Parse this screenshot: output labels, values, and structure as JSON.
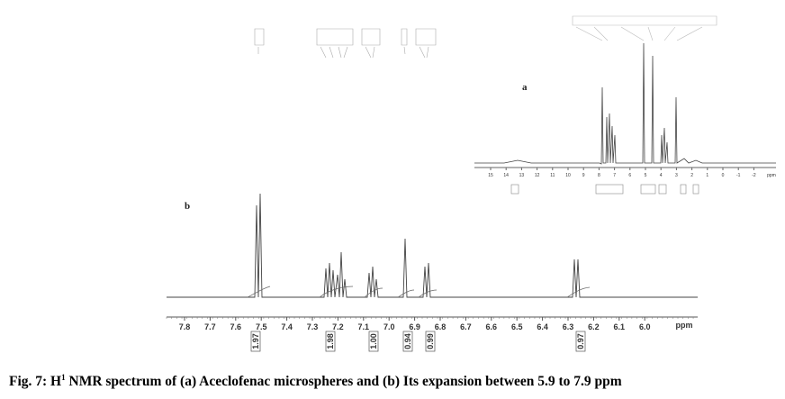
{
  "caption": {
    "label": "Fig. 7: H",
    "superscript": "1",
    "text": " NMR spectrum of (a) Aceclofenac microspheres and (b) Its expansion between 5.9 to 7.9 ppm"
  },
  "panel_a": {
    "label": "a",
    "axis_ticks": [
      "15",
      "14",
      "13",
      "12",
      "11",
      "10",
      "9",
      "8",
      "7",
      "6",
      "5",
      "4",
      "3",
      "2",
      "1",
      "0",
      "-1",
      "-2"
    ],
    "axis_unit": "ppm"
  },
  "panel_b": {
    "label": "b",
    "axis_ticks": [
      "7.8",
      "7.7",
      "7.6",
      "7.5",
      "7.4",
      "7.3",
      "7.2",
      "7.1",
      "7.0",
      "6.9",
      "6.8",
      "6.7",
      "6.6",
      "6.5",
      "6.4",
      "6.3",
      "6.2",
      "6.1",
      "6.0"
    ],
    "axis_unit": "ppm",
    "integrals": [
      "1.97",
      "1.98",
      "1.00",
      "0.94",
      "0.99",
      "0.97"
    ]
  }
}
